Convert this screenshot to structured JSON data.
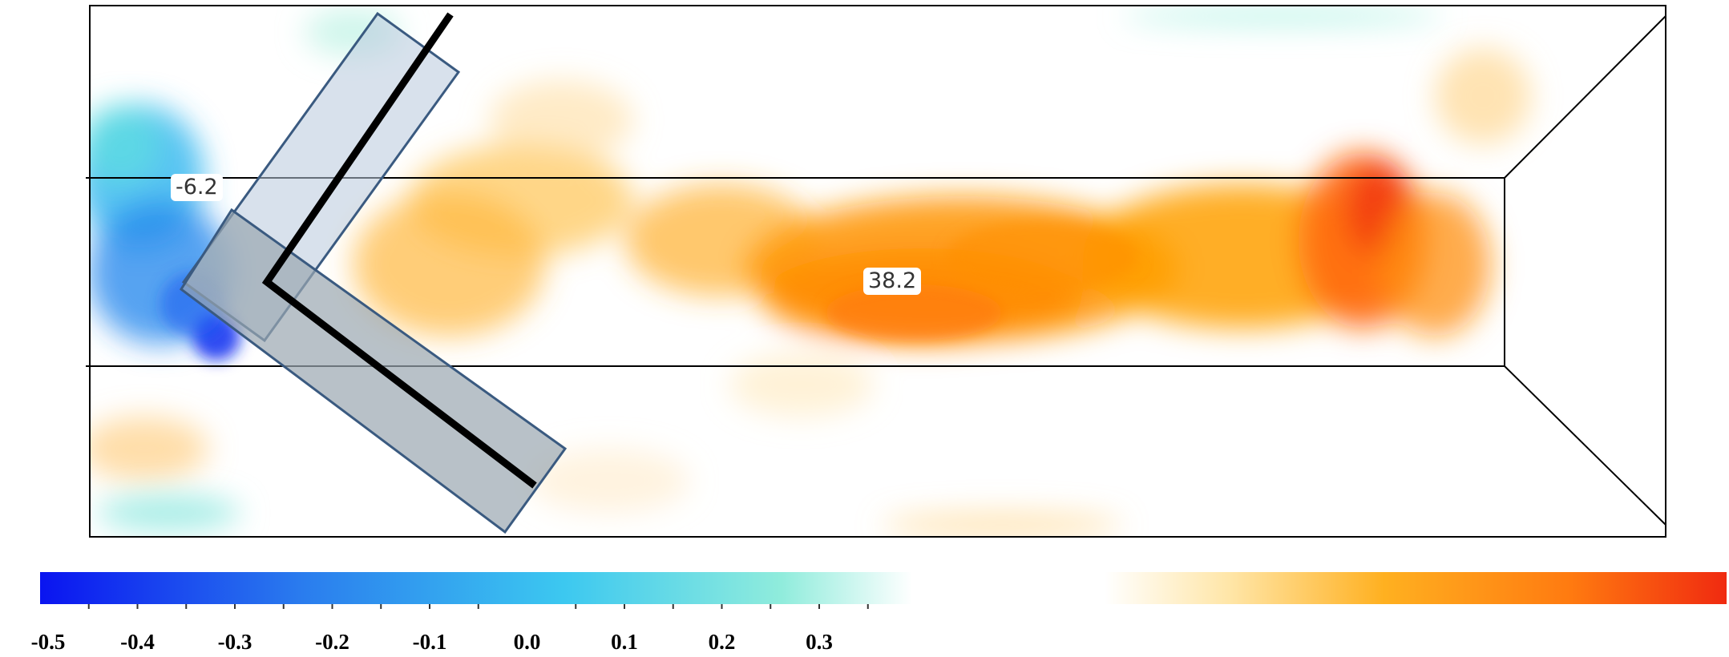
{
  "annotations": {
    "min_label": "-6.2",
    "max_label": "38.2"
  },
  "colorbar": {
    "ticks": [
      "-0.5",
      "-0.4",
      "-0.3",
      "-0.2",
      "-0.1",
      "0.0",
      "0.1",
      "0.2",
      "0.3"
    ],
    "range": [
      -0.5,
      0.35
    ],
    "colors": {
      "negative": [
        "#1020f0",
        "#2a80ee",
        "#3cc8f0",
        "#b0f0e0"
      ],
      "positive": [
        "#fff6e0",
        "#ffc040",
        "#ffa000",
        "#ff6820",
        "#f02a10"
      ]
    }
  },
  "field": {
    "outline_color": "#000000",
    "blade_fill": "#b8c8dc",
    "blade_stroke": "#3a5a80"
  }
}
